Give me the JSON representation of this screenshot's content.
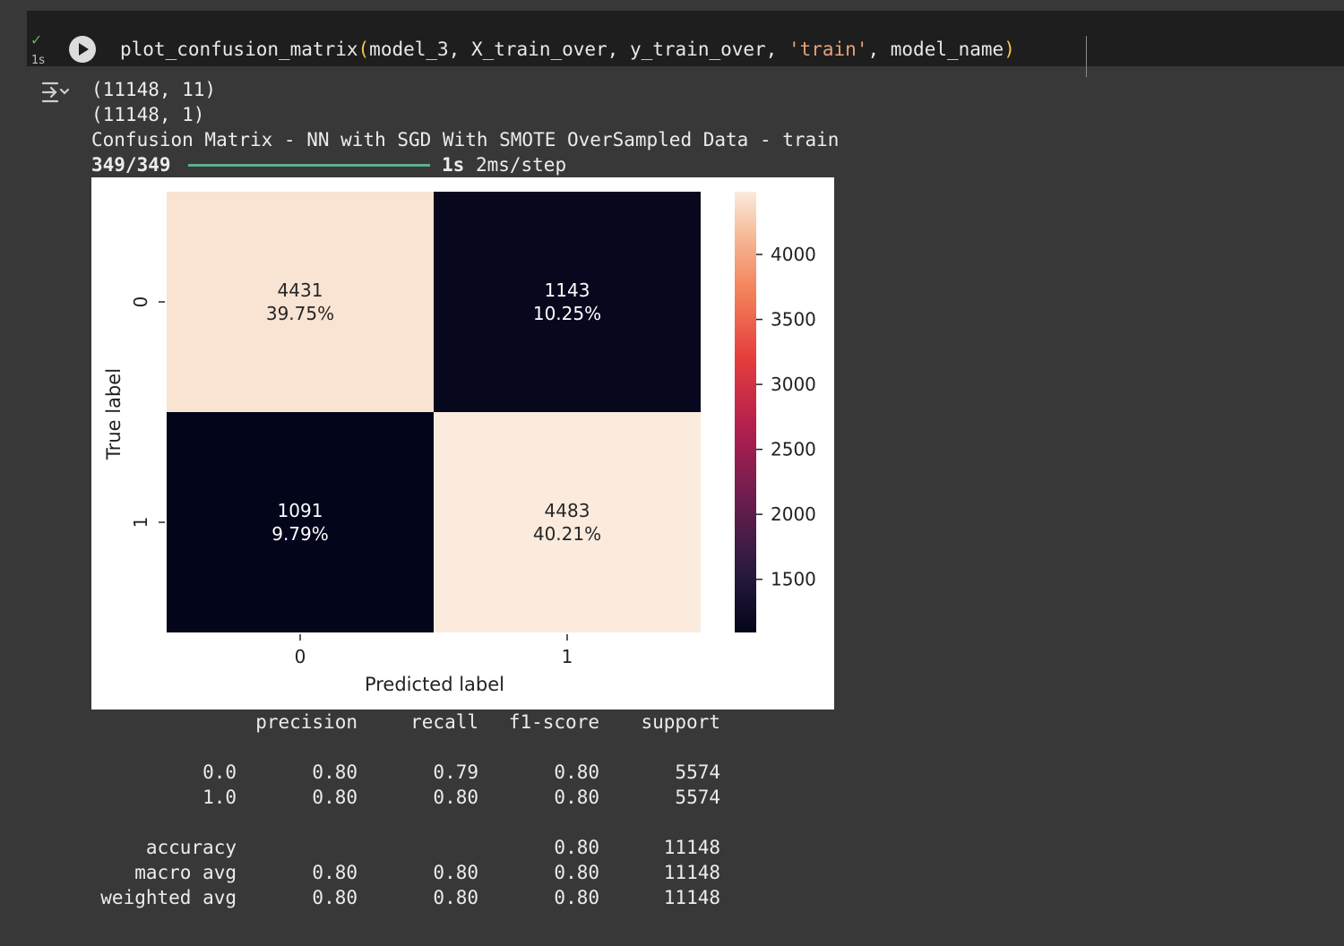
{
  "cell": {
    "exec_time": "1s",
    "code_fn": "plot_confusion_matrix",
    "code_args": "model_3, X_train_over, y_train_over, ",
    "code_str": "'train'",
    "code_tail": ", model_name"
  },
  "output": {
    "lines": [
      "(11148, 11)",
      "(11148, 1)",
      "Confusion Matrix - NN with SGD With SMOTE OverSampled Data - train"
    ],
    "progress": {
      "steps": "349/349",
      "fraction": 1.0,
      "time": "1s",
      "per_step": "2ms/step"
    }
  },
  "chart_data": {
    "type": "heatmap",
    "xlabel": "Predicted label",
    "ylabel": "True label",
    "x_categories": [
      "0",
      "1"
    ],
    "y_categories": [
      "0",
      "1"
    ],
    "cells": [
      {
        "row": 0,
        "col": 0,
        "count": "4431",
        "percent": "39.75%",
        "value": 4431
      },
      {
        "row": 0,
        "col": 1,
        "count": "1143",
        "percent": "10.25%",
        "value": 1143
      },
      {
        "row": 1,
        "col": 0,
        "count": "1091",
        "percent": "9.79%",
        "value": 1091
      },
      {
        "row": 1,
        "col": 1,
        "count": "4483",
        "percent": "40.21%",
        "value": 4483
      }
    ],
    "colorbar": {
      "min": 1091,
      "max": 4483,
      "ticks": [
        1500,
        2000,
        2500,
        3000,
        3500,
        4000
      ],
      "colormap": "rocket"
    }
  },
  "report": {
    "headers": [
      "precision",
      "recall",
      "f1-score",
      "support"
    ],
    "rows": [
      [
        "0.0",
        "0.80",
        "0.79",
        "0.80",
        "5574"
      ],
      [
        "1.0",
        "0.80",
        "0.80",
        "0.80",
        "5574"
      ],
      [],
      [
        "accuracy",
        "",
        "",
        "0.80",
        "11148"
      ],
      [
        "macro avg",
        "0.80",
        "0.80",
        "0.80",
        "11148"
      ],
      [
        "weighted avg",
        "0.80",
        "0.80",
        "0.80",
        "11148"
      ]
    ]
  }
}
